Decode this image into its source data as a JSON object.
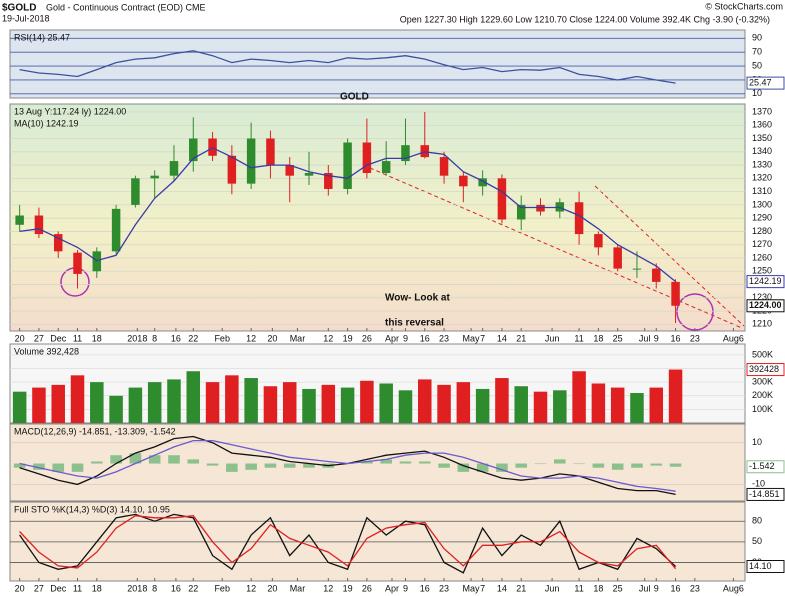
{
  "header": {
    "symbol": "$GOLD",
    "name": "Gold - Continuous Contract (EOD) CME",
    "date": "19-Jul-2018",
    "quote": "Open 1227.30 High 1229.60 Low 1210.70 Close 1224.00 Volume 392.4K Chg -3.90 (-0.32%)",
    "credit": "© StockCharts.com"
  },
  "chart_data": [
    {
      "type": "line",
      "label": "RSI(14) 25.47",
      "grid": true,
      "grid_color": "#4a5aa8",
      "x": [
        0,
        1,
        2,
        3,
        4,
        5,
        6,
        7,
        8,
        9,
        10,
        11,
        12,
        13,
        14,
        15,
        16,
        17,
        18,
        19,
        20,
        21,
        22,
        23,
        24,
        25,
        26,
        27,
        28,
        29,
        30,
        31,
        32,
        33,
        34
      ],
      "xlim": [
        -0.5,
        37.6
      ],
      "ylim": [
        4,
        102
      ],
      "yticks": [
        10,
        30,
        50,
        70,
        90
      ],
      "series": [
        {
          "color": "#3a52a0",
          "end_box": true,
          "values": [
            45,
            40,
            38,
            35,
            45,
            55,
            60,
            62,
            68,
            72,
            65,
            55,
            60,
            58,
            55,
            58,
            55,
            62,
            60,
            62,
            65,
            60,
            52,
            45,
            48,
            42,
            45,
            44,
            48,
            38,
            35,
            30,
            35,
            30,
            25.47
          ]
        }
      ]
    },
    {
      "type": "candlestick",
      "label": "13 Aug Y:117.24 ly) 1224.00",
      "grid": true,
      "grid_color": "#d6d6c8",
      "annotations": [
        "GOLD",
        "Wow-  Look at",
        "this reversal"
      ],
      "annotation_color": "#e02020",
      "x": [
        0,
        1,
        2,
        3,
        4,
        5,
        6,
        7,
        8,
        9,
        10,
        11,
        12,
        13,
        14,
        15,
        16,
        17,
        18,
        19,
        20,
        21,
        22,
        23,
        24,
        25,
        26,
        27,
        28,
        29,
        30,
        31,
        32,
        33,
        34
      ],
      "open": [
        1285,
        1292,
        1278,
        1264,
        1250,
        1265,
        1300,
        1320,
        1322,
        1333,
        1350,
        1337,
        1316,
        1350,
        1330,
        1322,
        1324,
        1312,
        1347,
        1324,
        1333,
        1345,
        1336,
        1322,
        1314,
        1320,
        1289,
        1300,
        1295,
        1302,
        1278,
        1268,
        1252,
        1252,
        1242
      ],
      "high": [
        1300,
        1298,
        1280,
        1266,
        1268,
        1300,
        1322,
        1326,
        1345,
        1366,
        1355,
        1345,
        1362,
        1356,
        1336,
        1340,
        1330,
        1350,
        1365,
        1348,
        1365,
        1370,
        1340,
        1325,
        1326,
        1323,
        1307,
        1305,
        1305,
        1310,
        1280,
        1270,
        1265,
        1256,
        1244
      ],
      "low": [
        1280,
        1275,
        1260,
        1237,
        1245,
        1263,
        1298,
        1305,
        1318,
        1325,
        1333,
        1308,
        1312,
        1320,
        1302,
        1315,
        1307,
        1308,
        1320,
        1322,
        1330,
        1335,
        1316,
        1302,
        1307,
        1286,
        1281,
        1292,
        1290,
        1270,
        1262,
        1250,
        1245,
        1237,
        1211
      ],
      "close": [
        1292,
        1278,
        1265,
        1248,
        1265,
        1297,
        1320,
        1322,
        1333,
        1350,
        1337,
        1316,
        1350,
        1330,
        1322,
        1324,
        1312,
        1347,
        1324,
        1333,
        1345,
        1336,
        1322,
        1314,
        1320,
        1289,
        1300,
        1295,
        1302,
        1278,
        1268,
        1252,
        1252,
        1242,
        1224
      ],
      "end_label": "1224.00",
      "up_color": "#2e8b2e",
      "down_color": "#e02020",
      "xlim": [
        -0.5,
        37.6
      ],
      "ylim": [
        1205,
        1376
      ],
      "yticks": [
        1210,
        1220,
        1230,
        1240,
        1250,
        1260,
        1270,
        1280,
        1290,
        1300,
        1310,
        1320,
        1330,
        1340,
        1350,
        1360,
        1370
      ],
      "xticks": [
        {
          "value": 0,
          "label": "20"
        },
        {
          "value": 1,
          "label": "27"
        },
        {
          "value": 2,
          "label": "Dec"
        },
        {
          "value": 3,
          "label": "11"
        },
        {
          "value": 4,
          "label": "18"
        },
        {
          "value": 6.1,
          "label": "2018"
        },
        {
          "value": 7,
          "label": "8"
        },
        {
          "value": 8.1,
          "label": "16"
        },
        {
          "value": 9,
          "label": "22"
        },
        {
          "value": 10.5,
          "label": "Feb"
        },
        {
          "value": 12,
          "label": "12"
        },
        {
          "value": 13.1,
          "label": "20"
        },
        {
          "value": 14.4,
          "label": "Mar"
        },
        {
          "value": 16,
          "label": "12"
        },
        {
          "value": 17,
          "label": "19"
        },
        {
          "value": 18,
          "label": "26"
        },
        {
          "value": 19.3,
          "label": "Apr"
        },
        {
          "value": 20,
          "label": "9"
        },
        {
          "value": 21,
          "label": "16"
        },
        {
          "value": 22,
          "label": "23"
        },
        {
          "value": 23.4,
          "label": "May"
        },
        {
          "value": 24,
          "label": "7"
        },
        {
          "value": 25,
          "label": "14"
        },
        {
          "value": 26,
          "label": "21"
        },
        {
          "value": 27.6,
          "label": "Jun"
        },
        {
          "value": 29,
          "label": "11"
        },
        {
          "value": 30,
          "label": "18"
        },
        {
          "value": 31,
          "label": "25"
        },
        {
          "value": 32.4,
          "label": "Jul"
        },
        {
          "value": 33,
          "label": "9"
        },
        {
          "value": 34,
          "label": "16"
        },
        {
          "value": 35,
          "label": "23"
        },
        {
          "value": 37,
          "label": "Aug6"
        }
      ],
      "series": [
        {
          "name": "MA(10) 1242.19",
          "color": "#3a3aa8",
          "end_box": true,
          "values": [
            1280,
            1282,
            1275,
            1268,
            1258,
            1262,
            1285,
            1305,
            1318,
            1335,
            1343,
            1336,
            1328,
            1330,
            1330,
            1325,
            1322,
            1320,
            1330,
            1335,
            1335,
            1340,
            1338,
            1325,
            1318,
            1310,
            1298,
            1298,
            1298,
            1292,
            1282,
            1270,
            1262,
            1254,
            1242.19
          ]
        }
      ]
    },
    {
      "type": "bar",
      "label": "Volume 392,428",
      "grid": true,
      "grid_color": "#dddddd",
      "x": [
        0,
        1,
        2,
        3,
        4,
        5,
        6,
        7,
        8,
        9,
        10,
        11,
        12,
        13,
        14,
        15,
        16,
        17,
        18,
        19,
        20,
        21,
        22,
        23,
        24,
        25,
        26,
        27,
        28,
        29,
        30,
        31,
        32,
        33,
        34
      ],
      "xlim": [
        -0.5,
        37.6
      ],
      "ylim": [
        0,
        580000
      ],
      "yticks": [
        {
          "value": 100000,
          "label": "100K"
        },
        {
          "value": 200000,
          "label": "200K"
        },
        {
          "value": 300000,
          "label": "300K"
        },
        {
          "value": 400000,
          "label": "400K"
        },
        {
          "value": 500000,
          "label": "500K"
        }
      ],
      "end_box": true,
      "values": [
        230000,
        260000,
        280000,
        350000,
        300000,
        200000,
        260000,
        300000,
        320000,
        380000,
        300000,
        350000,
        330000,
        270000,
        300000,
        250000,
        280000,
        260000,
        310000,
        290000,
        240000,
        320000,
        280000,
        300000,
        250000,
        330000,
        270000,
        230000,
        240000,
        380000,
        290000,
        260000,
        220000,
        260000,
        392428
      ]
    },
    {
      "type": "line",
      "label": "MACD(12,26,9) -14.851, -13.309, -1.542",
      "grid": true,
      "grid_color": "#d8c8b8",
      "x": [
        0,
        1,
        2,
        3,
        4,
        5,
        6,
        7,
        8,
        9,
        10,
        11,
        12,
        13,
        14,
        15,
        16,
        17,
        18,
        19,
        20,
        21,
        22,
        23,
        24,
        25,
        26,
        27,
        28,
        29,
        30,
        31,
        32,
        33,
        34
      ],
      "xlim": [
        -0.5,
        37.6
      ],
      "ylim": [
        -18,
        19
      ],
      "yticks": [
        {
          "value": -10,
          "label": "-10"
        },
        10
      ],
      "series": [
        {
          "type": "bar",
          "color": "#8cc08c",
          "end_box": true,
          "values": [
            -2,
            -3,
            -4,
            -4,
            1,
            4,
            5,
            4,
            4,
            2,
            -1,
            -4,
            -3,
            -2,
            -2,
            -2,
            -2,
            0,
            1,
            2,
            1,
            1,
            -2,
            -4,
            -4,
            -4,
            -2,
            0,
            2,
            0,
            -2,
            -3,
            -2,
            -1,
            -1.542
          ]
        },
        {
          "color": "#111111",
          "end_box": true,
          "values": [
            -2,
            -5,
            -8,
            -10,
            -6,
            0,
            5,
            8,
            12,
            13,
            10,
            5,
            4,
            3,
            1,
            0,
            -1,
            0,
            2,
            4,
            5,
            6,
            3,
            -1,
            -4,
            -7,
            -8,
            -7,
            -5,
            -6,
            -9,
            -12,
            -13,
            -13,
            -14.851
          ]
        },
        {
          "color": "#6a5acd",
          "values": [
            0,
            -2,
            -4,
            -6,
            -7,
            -4,
            0,
            4,
            8,
            11,
            11,
            9,
            7,
            5,
            3,
            2,
            1,
            0,
            1,
            2,
            4,
            5,
            5,
            3,
            0,
            -3,
            -6,
            -7,
            -7,
            -6,
            -7,
            -9,
            -11,
            -12,
            -13.309
          ]
        }
      ]
    },
    {
      "type": "line",
      "label": "Full STO %K(14,3) %D(3) 14.10, 10.95",
      "grid": true,
      "grid_color": "#555555",
      "x": [
        0,
        1,
        2,
        3,
        4,
        5,
        6,
        7,
        8,
        9,
        10,
        11,
        12,
        13,
        14,
        15,
        16,
        17,
        18,
        19,
        20,
        21,
        22,
        23,
        24,
        25,
        26,
        27,
        28,
        29,
        30,
        31,
        32,
        33,
        34
      ],
      "xlim": [
        -0.5,
        37.6
      ],
      "ylim": [
        -7,
        108
      ],
      "yticks": [
        20,
        50,
        80
      ],
      "xticks": [
        {
          "value": 0,
          "label": "20"
        },
        {
          "value": 1,
          "label": "27"
        },
        {
          "value": 2,
          "label": "Dec"
        },
        {
          "value": 3,
          "label": "11"
        },
        {
          "value": 4,
          "label": "18"
        },
        {
          "value": 6.1,
          "label": "2018"
        },
        {
          "value": 7,
          "label": "8"
        },
        {
          "value": 8.1,
          "label": "16"
        },
        {
          "value": 9,
          "label": "22"
        },
        {
          "value": 10.5,
          "label": "Feb"
        },
        {
          "value": 12,
          "label": "12"
        },
        {
          "value": 13.1,
          "label": "20"
        },
        {
          "value": 14.4,
          "label": "Mar"
        },
        {
          "value": 16,
          "label": "12"
        },
        {
          "value": 17,
          "label": "19"
        },
        {
          "value": 18,
          "label": "26"
        },
        {
          "value": 19.3,
          "label": "Apr"
        },
        {
          "value": 20,
          "label": "9"
        },
        {
          "value": 21,
          "label": "16"
        },
        {
          "value": 22,
          "label": "23"
        },
        {
          "value": 23.4,
          "label": "May"
        },
        {
          "value": 24,
          "label": "7"
        },
        {
          "value": 25,
          "label": "14"
        },
        {
          "value": 26,
          "label": "21"
        },
        {
          "value": 27.6,
          "label": "Jun"
        },
        {
          "value": 29,
          "label": "11"
        },
        {
          "value": 30,
          "label": "18"
        },
        {
          "value": 31,
          "label": "25"
        },
        {
          "value": 32.4,
          "label": "Jul"
        },
        {
          "value": 33,
          "label": "9"
        },
        {
          "value": 34,
          "label": "16"
        },
        {
          "value": 35,
          "label": "23"
        },
        {
          "value": 37,
          "label": "Aug6"
        }
      ],
      "series": [
        {
          "color": "#111111",
          "end_box": true,
          "end_label": "14.10",
          "values": [
            60,
            20,
            10,
            15,
            50,
            85,
            90,
            80,
            90,
            85,
            30,
            10,
            60,
            85,
            30,
            60,
            20,
            10,
            85,
            60,
            80,
            75,
            20,
            5,
            70,
            30,
            60,
            45,
            80,
            10,
            20,
            10,
            55,
            40,
            14.1
          ]
        },
        {
          "color": "#e02020",
          "values": [
            65,
            35,
            15,
            12,
            35,
            70,
            88,
            85,
            85,
            88,
            50,
            20,
            40,
            75,
            55,
            45,
            35,
            15,
            55,
            70,
            75,
            78,
            40,
            15,
            45,
            45,
            50,
            50,
            65,
            35,
            20,
            15,
            40,
            45,
            10.95
          ]
        }
      ]
    }
  ]
}
